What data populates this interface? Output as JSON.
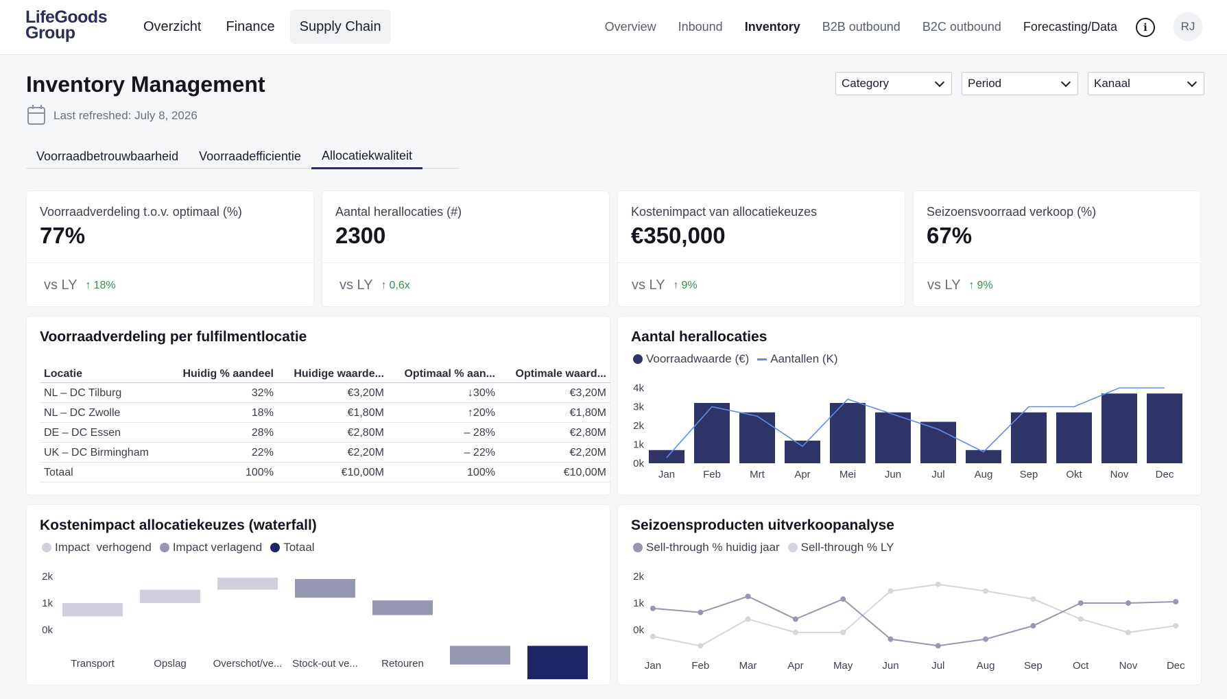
{
  "header": {
    "logo": "LifeGoods Group",
    "main_nav": [
      {
        "label": "Overzicht",
        "active": false
      },
      {
        "label": "Finance",
        "active": false
      },
      {
        "label": "Supply Chain",
        "active": true
      }
    ],
    "sub_nav": [
      {
        "label": "Overview",
        "active": false
      },
      {
        "label": "Inbound",
        "active": false
      },
      {
        "label": "Inventory",
        "active": true
      },
      {
        "label": "B2B outbound",
        "active": false
      },
      {
        "label": "B2C outbound",
        "active": false
      },
      {
        "label": "Forecasting/Data",
        "active": false
      }
    ],
    "info_icon": "info-icon",
    "avatar_initials": "RJ"
  },
  "page": {
    "title": "Inventory Management",
    "last_refreshed": "Last refreshed: July 8, 2026",
    "filters": [
      {
        "label": "Category"
      },
      {
        "label": "Period"
      },
      {
        "label": "Kanaal"
      }
    ],
    "tabs": [
      {
        "label": "Voorraadbetrouwbaarheid",
        "active": false
      },
      {
        "label": "Voorraadefficientie",
        "active": false
      },
      {
        "label": "Allocatiekwaliteit",
        "active": true
      }
    ]
  },
  "kpis": [
    {
      "label": "Voorraadverdeling t.o.v. optimaal (%)",
      "value": "77%",
      "compare": "vs LY",
      "delta": "18%"
    },
    {
      "label": "Aantal herallocaties (#)",
      "value": "2300",
      "compare": "vs LY",
      "delta": "0,6x"
    },
    {
      "label": "Kostenimpact van allocatiekeuzes",
      "value": "€350,000",
      "compare": "vs LY",
      "delta": "9%"
    },
    {
      "label": "Seizoensvoorraad verkoop (%)",
      "value": "67%",
      "compare": "vs LY",
      "delta": "9%"
    }
  ],
  "colors": {
    "navy": "#2e3466",
    "line_blue": "#5b8def",
    "positive": "#3b8a55",
    "light_gray": "#cfd0db",
    "mid_gray": "#9598b0",
    "dark_navy": "#1f2466"
  },
  "location_table": {
    "title": "Voorraadverdeling per fulfilmentlocatie",
    "columns": [
      "Locatie",
      "Huidig % aandeel",
      "Huidige waarde...",
      "Optimaal % aan...",
      "Optimale waard..."
    ],
    "rows": [
      [
        "NL – DC Tilburg",
        "32%",
        "€3,20M",
        "↓30%",
        "€3,20M"
      ],
      [
        "NL – DC Zwolle",
        "18%",
        "€1,80M",
        "↑20%",
        "€1,80M"
      ],
      [
        "DE – DC Essen",
        "28%",
        "€2,80M",
        "– 28%",
        "€2,80M"
      ],
      [
        "UK – DC Birmingham",
        "22%",
        "€2,20M",
        "– 22%",
        "€2,20M"
      ],
      [
        "Totaal",
        "100%",
        "€10,00M",
        "100%",
        "€10,00M"
      ]
    ]
  },
  "chart_data": [
    {
      "type": "bar",
      "title": "Aantal herallocaties",
      "categories": [
        "Jan",
        "Feb",
        "Mrt",
        "Apr",
        "Mei",
        "Jun",
        "Jul",
        "Aug",
        "Sep",
        "Okt",
        "Nov",
        "Dec"
      ],
      "series": [
        {
          "name": "Voorraadwaarde (€)",
          "kind": "bar",
          "color": "#2e3466",
          "values": [
            700,
            3200,
            2700,
            1200,
            3200,
            2700,
            2200,
            700,
            2700,
            2700,
            3700,
            3700
          ]
        },
        {
          "name": "Aantallen (K)",
          "kind": "line",
          "color": "#5b8def",
          "values": [
            300,
            3000,
            2500,
            900,
            3400,
            2600,
            1800,
            600,
            3000,
            3000,
            4000,
            4000
          ]
        }
      ],
      "y_ticks": [
        "0k",
        "1k",
        "2k",
        "3k",
        "4k"
      ],
      "ylim": [
        0,
        4000
      ],
      "grid": false,
      "legend": "top-left"
    },
    {
      "type": "bar",
      "title": "Kostenimpact allocatiekeuzes (waterfall)",
      "categories": [
        "Transport",
        "Opslag",
        "Overschot/ve...",
        "Stock-out ve...",
        "Retouren",
        "",
        ""
      ],
      "legend_items": [
        {
          "name": "Impact  verhogend",
          "color": "#cfd0db"
        },
        {
          "name": "Impact verlagend",
          "color": "#9598b0"
        },
        {
          "name": "Totaal",
          "color": "#1f2466"
        }
      ],
      "bars": [
        {
          "start": 500,
          "end": 1000,
          "kind": "up"
        },
        {
          "start": 1000,
          "end": 1500,
          "kind": "up"
        },
        {
          "start": 1500,
          "end": 1950,
          "kind": "up"
        },
        {
          "start": 1900,
          "end": 1200,
          "kind": "down"
        },
        {
          "start": 1100,
          "end": 550,
          "kind": "down"
        },
        {
          "start": -600,
          "end": -1300,
          "kind": "down"
        },
        {
          "start": -600,
          "end": -1850,
          "kind": "total"
        }
      ],
      "y_ticks": [
        "0k",
        "1k",
        "2k"
      ],
      "ylim": [
        0,
        2000
      ],
      "grid": false,
      "legend": "top-left"
    },
    {
      "type": "line",
      "title": "Seizoensproducten uitverkoopanalyse",
      "categories": [
        "Jan",
        "Feb",
        "Mar",
        "Apr",
        "May",
        "Jun",
        "Jul",
        "Aug",
        "Sep",
        "Oct",
        "Nov",
        "Dec"
      ],
      "series": [
        {
          "name": "Sell-through % huidig jaar",
          "color": "#9598b0",
          "values": [
            800,
            650,
            1250,
            400,
            1150,
            -350,
            -600,
            -350,
            150,
            1000,
            1000,
            1050
          ]
        },
        {
          "name": "Sell-through % LY",
          "color": "#d4d5df",
          "values": [
            -250,
            -600,
            400,
            -100,
            -100,
            1450,
            1700,
            1450,
            1150,
            400,
            -100,
            150
          ]
        }
      ],
      "y_ticks": [
        "0k",
        "1k",
        "2k"
      ],
      "ylim": [
        0,
        2000
      ],
      "grid": false,
      "legend": "top-left"
    }
  ]
}
